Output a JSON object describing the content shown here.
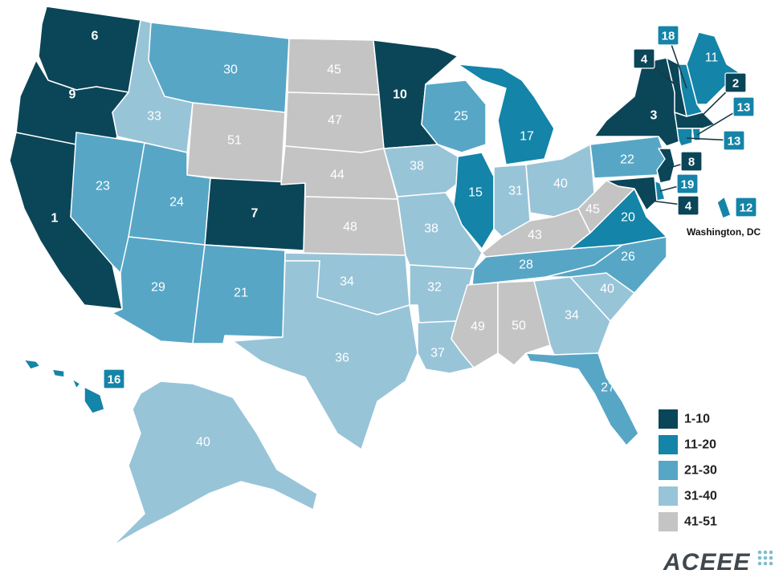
{
  "colors": {
    "1-10": "#0b4558",
    "11-20": "#1484a8",
    "21-30": "#57a6c6",
    "31-40": "#98c4d8",
    "41-51": "#c4c4c4"
  },
  "legend": [
    {
      "label": "1-10",
      "color_key": "1-10"
    },
    {
      "label": "11-20",
      "color_key": "11-20"
    },
    {
      "label": "21-30",
      "color_key": "21-30"
    },
    {
      "label": "31-40",
      "color_key": "31-40"
    },
    {
      "label": "41-51",
      "color_key": "41-51"
    }
  ],
  "states": [
    {
      "abbr": "WA",
      "rank": 6
    },
    {
      "abbr": "OR",
      "rank": 9
    },
    {
      "abbr": "CA",
      "rank": 1
    },
    {
      "abbr": "ID",
      "rank": 33
    },
    {
      "abbr": "NV",
      "rank": 23
    },
    {
      "abbr": "MT",
      "rank": 30
    },
    {
      "abbr": "WY",
      "rank": 51
    },
    {
      "abbr": "UT",
      "rank": 24
    },
    {
      "abbr": "AZ",
      "rank": 29
    },
    {
      "abbr": "CO",
      "rank": 7
    },
    {
      "abbr": "NM",
      "rank": 21
    },
    {
      "abbr": "ND",
      "rank": 45
    },
    {
      "abbr": "SD",
      "rank": 47
    },
    {
      "abbr": "NE",
      "rank": 44
    },
    {
      "abbr": "KS",
      "rank": 48
    },
    {
      "abbr": "OK",
      "rank": 34
    },
    {
      "abbr": "TX",
      "rank": 36
    },
    {
      "abbr": "MN",
      "rank": 10
    },
    {
      "abbr": "IA",
      "rank": 38
    },
    {
      "abbr": "MO",
      "rank": 38
    },
    {
      "abbr": "AR",
      "rank": 32
    },
    {
      "abbr": "LA",
      "rank": 37
    },
    {
      "abbr": "WI",
      "rank": 25
    },
    {
      "abbr": "IL",
      "rank": 15
    },
    {
      "abbr": "MI",
      "rank": 17
    },
    {
      "abbr": "IN",
      "rank": 31
    },
    {
      "abbr": "OH",
      "rank": 40
    },
    {
      "abbr": "KY",
      "rank": 43
    },
    {
      "abbr": "TN",
      "rank": 28
    },
    {
      "abbr": "MS",
      "rank": 49
    },
    {
      "abbr": "AL",
      "rank": 50
    },
    {
      "abbr": "GA",
      "rank": 34
    },
    {
      "abbr": "FL",
      "rank": 27
    },
    {
      "abbr": "SC",
      "rank": 40
    },
    {
      "abbr": "NC",
      "rank": 26
    },
    {
      "abbr": "VA",
      "rank": 20
    },
    {
      "abbr": "WV",
      "rank": 45
    },
    {
      "abbr": "PA",
      "rank": 22
    },
    {
      "abbr": "NY",
      "rank": 3
    },
    {
      "abbr": "AK",
      "rank": 40
    },
    {
      "abbr": "HI",
      "rank": 16
    },
    {
      "abbr": "ME",
      "rank": 11
    },
    {
      "abbr": "NH",
      "rank": 18
    },
    {
      "abbr": "VT",
      "rank": 4
    },
    {
      "abbr": "MA",
      "rank": 2
    },
    {
      "abbr": "RI",
      "rank": 13
    },
    {
      "abbr": "CT",
      "rank": 13
    },
    {
      "abbr": "NJ",
      "rank": 8
    },
    {
      "abbr": "DE",
      "rank": 19
    },
    {
      "abbr": "MD",
      "rank": 4
    },
    {
      "abbr": "DC",
      "rank": 12
    }
  ],
  "dc_label": "Washington, DC",
  "logo_text": "ACEEE"
}
